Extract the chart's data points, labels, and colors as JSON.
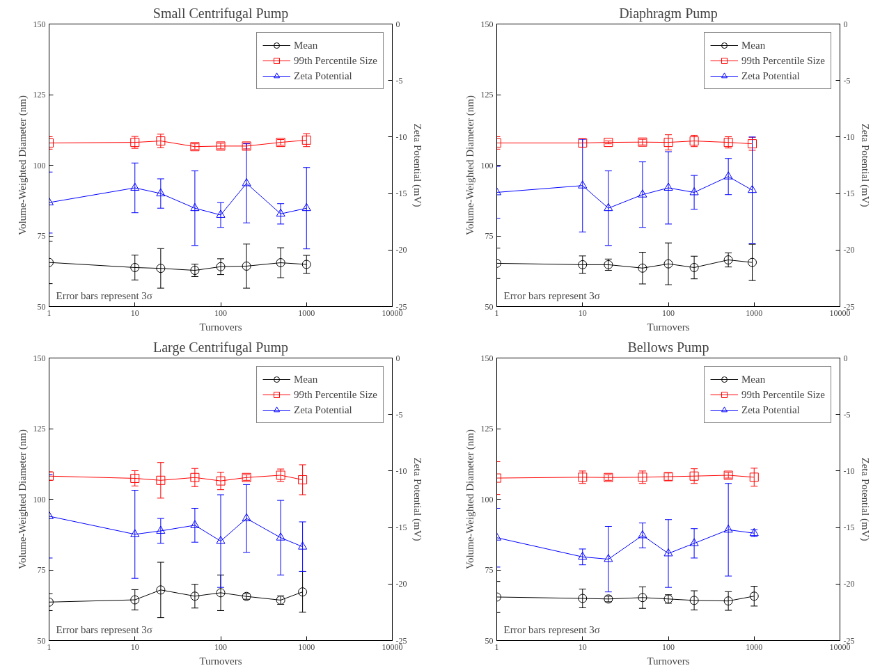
{
  "chart_data": [
    {
      "type": "line",
      "title": "Small Centrifugal Pump",
      "xlabel": "Turnovers",
      "ylabel": "Volume-Weighted Diameter (nm)",
      "y2label": "Zeta Potential (mV)",
      "log": "x",
      "grid": false,
      "legend": "top right",
      "annotations": [
        "Error bars represent 3σ"
      ],
      "xlim": [
        1,
        10000
      ],
      "xticks": [
        1,
        10,
        100,
        1000,
        10000
      ],
      "ylim": [
        50,
        150
      ],
      "yticks": [
        50,
        75,
        100,
        125,
        150
      ],
      "y2lim": [
        -25,
        0
      ],
      "y2ticks": [
        -25,
        -20,
        -15,
        -10,
        -5,
        0
      ],
      "x": [
        1,
        10,
        20,
        50,
        100,
        200,
        500,
        1000
      ],
      "series": [
        {
          "name": "Mean",
          "color": "#000000",
          "marker": "circle",
          "values": [
            65.6,
            63.8,
            63.5,
            62.8,
            64.1,
            64.3,
            65.5,
            64.9
          ],
          "errors": [
            7.5,
            4.4,
            7.0,
            2.2,
            2.8,
            7.8,
            5.3,
            3.2
          ]
        },
        {
          "name": "99th Percentile Size",
          "color": "#ff0000",
          "marker": "square",
          "values": [
            107.9,
            108.1,
            108.6,
            106.6,
            106.8,
            106.8,
            108.1,
            108.9
          ],
          "errors": [
            2.2,
            2.1,
            2.4,
            1.0,
            1.0,
            1.0,
            1.0,
            2.3
          ]
        },
        {
          "name": "Zeta Potential",
          "color": "#0000ff",
          "marker": "triangle",
          "axis": "y2",
          "values": [
            -15.8,
            -14.5,
            -15.0,
            -16.3,
            -16.9,
            -14.1,
            -16.8,
            -16.3
          ],
          "errors": [
            2.7,
            2.2,
            1.3,
            3.3,
            1.1,
            3.5,
            0.9,
            3.6
          ]
        }
      ]
    },
    {
      "type": "line",
      "title": "Diaphragm Pump",
      "xlabel": "Turnovers",
      "ylabel": "Volume-Weighted Diameter (nm)",
      "y2label": "Zeta Potential (mV)",
      "log": "x",
      "grid": false,
      "legend": "top right",
      "annotations": [
        "Error bars represent 3σ"
      ],
      "xlim": [
        1,
        10000
      ],
      "xticks": [
        1,
        10,
        100,
        1000,
        10000
      ],
      "ylim": [
        50,
        150
      ],
      "yticks": [
        50,
        75,
        100,
        125,
        150
      ],
      "y2lim": [
        -25,
        0
      ],
      "y2ticks": [
        -25,
        -20,
        -15,
        -10,
        -5,
        0
      ],
      "x": [
        1,
        10,
        20,
        50,
        100,
        200,
        500,
        950
      ],
      "series": [
        {
          "name": "Mean",
          "color": "#000000",
          "marker": "circle",
          "values": [
            65.3,
            64.8,
            64.8,
            63.6,
            65.1,
            63.8,
            66.5,
            65.6
          ],
          "errors": [
            5.4,
            3.1,
            2.0,
            5.6,
            7.4,
            4.0,
            2.5,
            6.4
          ]
        },
        {
          "name": "99th Percentile Size",
          "color": "#ff0000",
          "marker": "square",
          "values": [
            107.9,
            107.9,
            108.1,
            108.2,
            108.1,
            108.6,
            108.1,
            107.6
          ],
          "errors": [
            2.2,
            1.5,
            0.5,
            1.0,
            2.7,
            2.0,
            2.0,
            2.3
          ]
        },
        {
          "name": "Zeta Potential",
          "color": "#0000ff",
          "marker": "triangle",
          "axis": "y2",
          "values": [
            -14.9,
            -14.3,
            -16.3,
            -15.1,
            -14.5,
            -14.9,
            -13.5,
            -14.7
          ],
          "errors": [
            2.3,
            4.1,
            3.3,
            2.9,
            3.2,
            1.5,
            1.6,
            4.7
          ]
        }
      ]
    },
    {
      "type": "line",
      "title": "Large Centrifugal Pump",
      "xlabel": "Turnovers",
      "ylabel": "Volume-Weighted Diameter (nm)",
      "y2label": "Zeta Potential (mV)",
      "log": "x",
      "grid": false,
      "legend": "top right",
      "annotations": [
        "Error bars represent 3σ"
      ],
      "xlim": [
        1,
        10000
      ],
      "xticks": [
        1,
        10,
        100,
        1000,
        10000
      ],
      "ylim": [
        50,
        150
      ],
      "yticks": [
        50,
        75,
        100,
        125,
        150
      ],
      "y2lim": [
        -25,
        0
      ],
      "y2ticks": [
        -25,
        -20,
        -15,
        -10,
        -5,
        0
      ],
      "x": [
        1,
        10,
        20,
        50,
        100,
        200,
        500,
        900
      ],
      "series": [
        {
          "name": "Mean",
          "color": "#000000",
          "marker": "circle",
          "values": [
            63.6,
            64.4,
            67.9,
            65.7,
            66.9,
            65.6,
            64.3,
            67.2
          ],
          "errors": [
            3.0,
            3.6,
            9.8,
            4.2,
            6.3,
            1.0,
            1.5,
            7.2
          ]
        },
        {
          "name": "99th Percentile Size",
          "color": "#ff0000",
          "marker": "square",
          "values": [
            108.2,
            107.4,
            106.7,
            107.7,
            106.5,
            107.7,
            108.5,
            106.9
          ],
          "errors": [
            1.5,
            2.7,
            6.3,
            3.2,
            3.1,
            1.0,
            2.2,
            5.3
          ]
        },
        {
          "name": "Zeta Potential",
          "color": "#0000ff",
          "marker": "triangle",
          "axis": "y2",
          "values": [
            -14.0,
            -15.6,
            -15.3,
            -14.8,
            -16.2,
            -14.2,
            -15.9,
            -16.7
          ],
          "errors": [
            3.7,
            3.9,
            1.1,
            1.5,
            4.1,
            3.0,
            3.3,
            2.2
          ]
        }
      ]
    },
    {
      "type": "line",
      "title": "Bellows Pump",
      "xlabel": "Turnovers",
      "ylabel": "Volume-Weighted Diameter (nm)",
      "y2label": "Zeta Potential (mV)",
      "log": "x",
      "grid": false,
      "legend": "top right",
      "annotations": [
        "Error bars represent 3σ"
      ],
      "xlim": [
        1,
        10000
      ],
      "xticks": [
        1,
        10,
        100,
        1000,
        10000
      ],
      "ylim": [
        50,
        150
      ],
      "yticks": [
        50,
        75,
        100,
        125,
        150
      ],
      "y2lim": [
        -25,
        0
      ],
      "y2ticks": [
        -25,
        -20,
        -15,
        -10,
        -5,
        0
      ],
      "x": [
        1,
        10,
        20,
        50,
        100,
        200,
        500,
        1000
      ],
      "series": [
        {
          "name": "Mean",
          "color": "#000000",
          "marker": "circle",
          "values": [
            65.4,
            64.9,
            64.7,
            65.2,
            64.7,
            64.2,
            64.0,
            65.7
          ],
          "errors": [
            5.5,
            3.3,
            1.0,
            3.8,
            1.5,
            3.4,
            3.3,
            3.5
          ]
        },
        {
          "name": "99th Percentile Size",
          "color": "#ff0000",
          "marker": "square",
          "values": [
            107.5,
            107.8,
            107.7,
            107.8,
            108.0,
            108.2,
            108.5,
            107.8
          ],
          "errors": [
            5.8,
            2.2,
            1.0,
            2.2,
            1.3,
            2.6,
            1.0,
            3.2
          ]
        },
        {
          "name": "Zeta Potential",
          "color": "#0000ff",
          "marker": "triangle",
          "axis": "y2",
          "values": [
            -15.9,
            -17.6,
            -17.8,
            -15.7,
            -17.3,
            -16.4,
            -15.2,
            -15.5
          ],
          "errors": [
            2.6,
            0.7,
            2.9,
            1.1,
            3.0,
            1.3,
            4.1,
            0.3
          ]
        }
      ]
    }
  ]
}
